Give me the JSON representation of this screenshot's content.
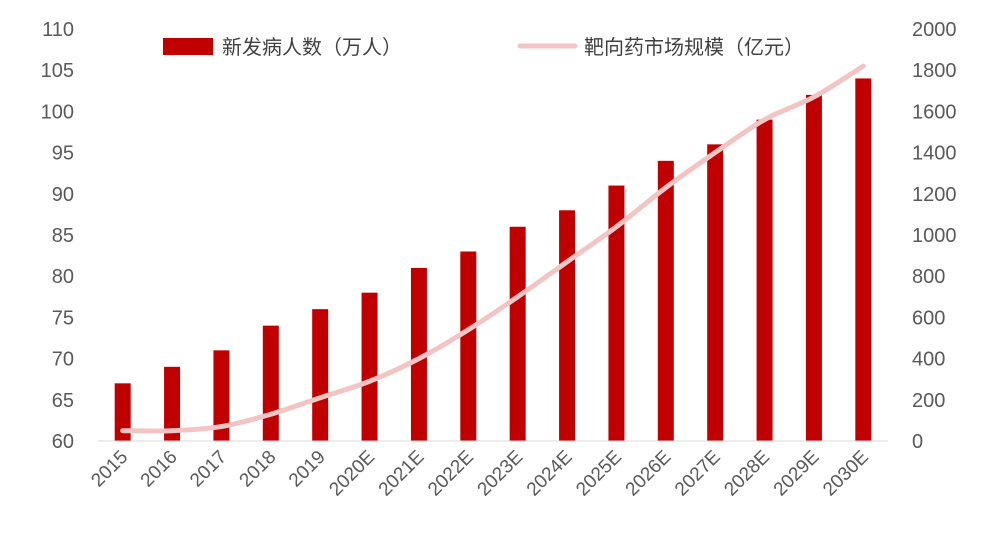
{
  "chart_data": {
    "type": "bar",
    "categories": [
      "2015",
      "2016",
      "2017",
      "2018",
      "2019",
      "2020E",
      "2021E",
      "2022E",
      "2023E",
      "2024E",
      "2025E",
      "2026E",
      "2027E",
      "2028E",
      "2029E",
      "2030E"
    ],
    "series": [
      {
        "name": "新发病人数（万人）",
        "type": "bar",
        "axis": "left",
        "color": "#C00000",
        "values": [
          67,
          69,
          71,
          74,
          76,
          78,
          81,
          83,
          86,
          88,
          91,
          94,
          96,
          99,
          102,
          104
        ]
      },
      {
        "name": "靶向药市场规模（亿元）",
        "type": "line",
        "axis": "right",
        "color": "#F2C4C4",
        "values": [
          50,
          50,
          70,
          130,
          210,
          290,
          400,
          540,
          700,
          870,
          1040,
          1230,
          1400,
          1560,
          1670,
          1820
        ]
      }
    ],
    "left_axis": {
      "min": 60,
      "max": 110,
      "ticks": [
        "60",
        "65",
        "70",
        "75",
        "80",
        "85",
        "90",
        "95",
        "100",
        "105",
        "110"
      ]
    },
    "right_axis": {
      "min": 0,
      "max": 2000,
      "ticks": [
        "0",
        "200",
        "400",
        "600",
        "800",
        "1000",
        "1200",
        "1400",
        "1600",
        "1800",
        "2000"
      ]
    },
    "legend": {
      "placement": "top-center"
    },
    "grid": false
  }
}
